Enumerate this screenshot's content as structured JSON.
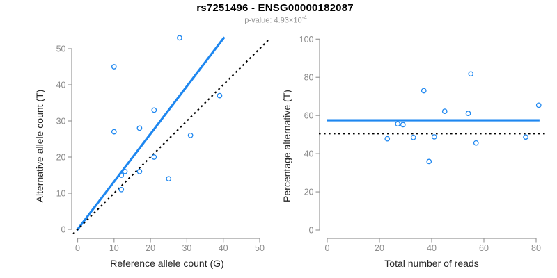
{
  "header": {
    "title": "rs7251496 - ENSG00000182087",
    "subtitle_text": "p-value: 4.93×10",
    "subtitle_exponent": "-4"
  },
  "colors": {
    "blue": "#1E87F0",
    "black": "#000000",
    "axis": "#999999",
    "tick_label": "#8C8C8C",
    "label": "#262626",
    "subtitle": "#959595"
  },
  "chart_data": [
    {
      "type": "scatter",
      "xlabel": "Reference allele count (G)",
      "ylabel": "Alternative allele count (T)",
      "xlim": [
        0,
        50
      ],
      "ylim": [
        0,
        53
      ],
      "xticks": [
        0,
        10,
        20,
        30,
        40,
        50
      ],
      "yticks": [
        0,
        10,
        20,
        30,
        40,
        50
      ],
      "grid": false,
      "points": [
        [
          28,
          53
        ],
        [
          10,
          45
        ],
        [
          39,
          37
        ],
        [
          21,
          33
        ],
        [
          17,
          28
        ],
        [
          10,
          27
        ],
        [
          31,
          26
        ],
        [
          21,
          20
        ],
        [
          17,
          16
        ],
        [
          13,
          16
        ],
        [
          12,
          15
        ],
        [
          25,
          14
        ],
        [
          12,
          11
        ]
      ],
      "lines": [
        {
          "role": "fit",
          "type": "abline",
          "slope": 1.32,
          "intercept": 0,
          "color_key": "blue",
          "style": "solid"
        },
        {
          "role": "identity",
          "type": "abline",
          "slope": 1,
          "intercept": 0,
          "color_key": "black",
          "style": "dotted"
        }
      ]
    },
    {
      "type": "scatter",
      "xlabel": "Total number of reads",
      "ylabel": "Percentage alternative (T)",
      "xlim": [
        0,
        81
      ],
      "ylim": [
        0,
        100
      ],
      "xticks": [
        0,
        20,
        40,
        60,
        80
      ],
      "yticks": [
        0,
        20,
        40,
        60,
        80,
        100
      ],
      "grid": false,
      "points": [
        [
          81,
          65.4
        ],
        [
          55,
          81.8
        ],
        [
          76,
          48.7
        ],
        [
          54,
          61.1
        ],
        [
          45,
          62.2
        ],
        [
          37,
          73.0
        ],
        [
          57,
          45.6
        ],
        [
          41,
          48.8
        ],
        [
          33,
          48.5
        ],
        [
          29,
          55.2
        ],
        [
          27,
          55.6
        ],
        [
          39,
          35.9
        ],
        [
          23,
          47.8
        ]
      ],
      "lines": [
        {
          "role": "mean",
          "type": "hline",
          "y": 57.5,
          "color_key": "blue",
          "style": "solid"
        },
        {
          "role": "expected",
          "type": "hline",
          "y": 50.5,
          "color_key": "black",
          "style": "dotted"
        }
      ]
    }
  ]
}
